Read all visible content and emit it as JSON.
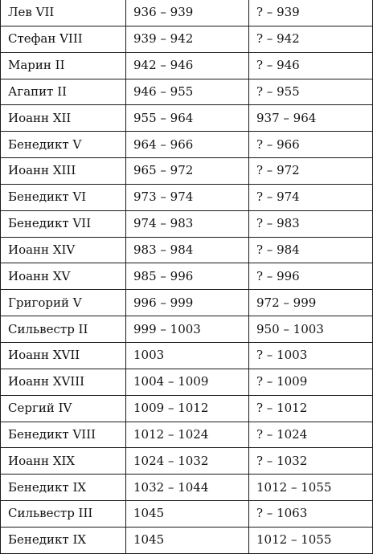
{
  "rows": [
    {
      "name": "Лев VII",
      "pontificate": "936 – 939",
      "lifespan": "? – 939"
    },
    {
      "name": "Стефан VIII",
      "pontificate": "939 – 942",
      "lifespan": "? – 942"
    },
    {
      "name": "Марин II",
      "pontificate": "942 – 946",
      "lifespan": "? – 946"
    },
    {
      "name": "Агапит II",
      "pontificate": "946 – 955",
      "lifespan": "? – 955"
    },
    {
      "name": "Иоанн XII",
      "pontificate": "955 – 964",
      "lifespan": "937 – 964"
    },
    {
      "name": "Бенедикт V",
      "pontificate": "964 – 966",
      "lifespan": "? – 966"
    },
    {
      "name": "Иоанн XIII",
      "pontificate": "965 – 972",
      "lifespan": "? – 972"
    },
    {
      "name": "Бенедикт VI",
      "pontificate": "973 – 974",
      "lifespan": "? – 974"
    },
    {
      "name": "Бенедикт VII",
      "pontificate": "974 – 983",
      "lifespan": "? – 983"
    },
    {
      "name": "Иоанн XIV",
      "pontificate": "983 – 984",
      "lifespan": "? – 984"
    },
    {
      "name": "Иоанн XV",
      "pontificate": "985 – 996",
      "lifespan": "? – 996"
    },
    {
      "name": "Григорий V",
      "pontificate": "996 – 999",
      "lifespan": "972 – 999"
    },
    {
      "name": "Сильвестр II",
      "pontificate": "999 – 1003",
      "lifespan": "950 – 1003"
    },
    {
      "name": "Иоанн XVII",
      "pontificate": "1003",
      "lifespan": "? – 1003"
    },
    {
      "name": "Иоанн XVIII",
      "pontificate": "1004 – 1009",
      "lifespan": "? – 1009"
    },
    {
      "name": "Сергий IV",
      "pontificate": "1009 – 1012",
      "lifespan": "? – 1012"
    },
    {
      "name": "Бенедикт VIII",
      "pontificate": "1012 – 1024",
      "lifespan": "? – 1024"
    },
    {
      "name": "Иоанн XIX",
      "pontificate": "1024 – 1032",
      "lifespan": "? – 1032"
    },
    {
      "name": "Бенедикт IX",
      "pontificate": "1032 – 1044",
      "lifespan": "1012 – 1055"
    },
    {
      "name": "Сильвестр III",
      "pontificate": "1045",
      "lifespan": "? – 1063"
    },
    {
      "name": "Бенедикт IX",
      "pontificate": "1045",
      "lifespan": "1012 – 1055"
    }
  ]
}
